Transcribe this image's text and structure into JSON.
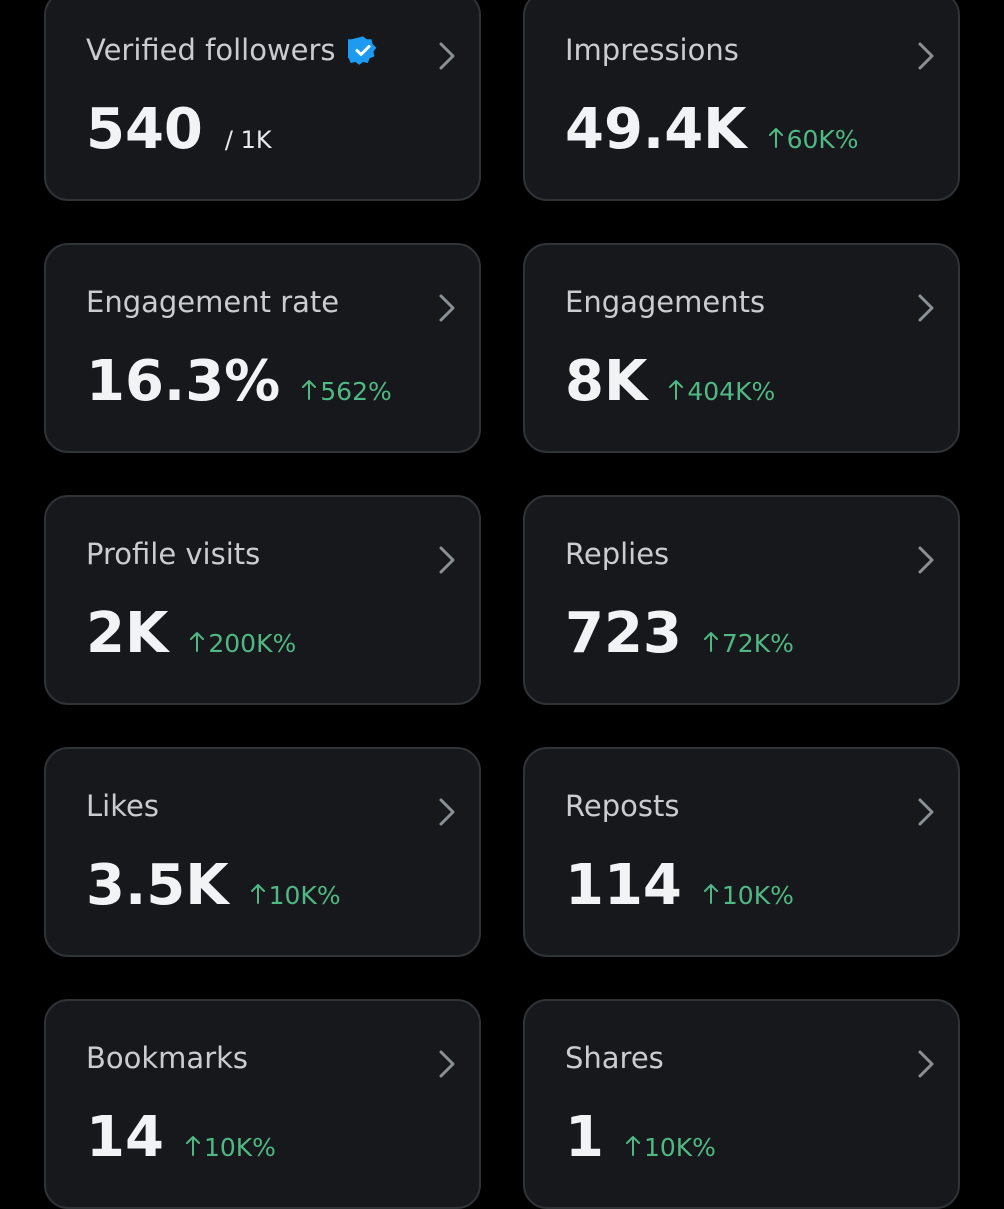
{
  "cards": [
    {
      "label": "Verified followers",
      "verified": true,
      "value": "540",
      "total": "/ 1K"
    },
    {
      "label": "Impressions",
      "value": "49.4K",
      "change": "60K%"
    },
    {
      "label": "Engagement rate",
      "value": "16.3%",
      "change": "562%"
    },
    {
      "label": "Engagements",
      "value": "8K",
      "change": "404K%"
    },
    {
      "label": "Profile visits",
      "value": "2K",
      "change": "200K%"
    },
    {
      "label": "Replies",
      "value": "723",
      "change": "72K%"
    },
    {
      "label": "Likes",
      "value": "3.5K",
      "change": "10K%"
    },
    {
      "label": "Reposts",
      "value": "114",
      "change": "10K%"
    },
    {
      "label": "Bookmarks",
      "value": "14",
      "change": "10K%"
    },
    {
      "label": "Shares",
      "value": "1",
      "change": "10K%"
    }
  ]
}
